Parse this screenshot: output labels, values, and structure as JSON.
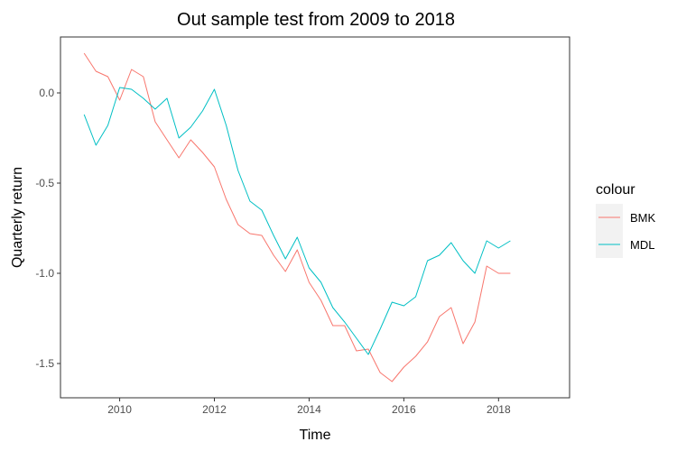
{
  "chart_data": {
    "type": "line",
    "title": "Out sample test from 2009 to 2018",
    "xlabel": "Time",
    "ylabel": "Quarterly return",
    "xlim": [
      2008.75,
      2019.5
    ],
    "ylim": [
      -1.69,
      0.31
    ],
    "xticks": [
      2010,
      2012,
      2014,
      2016,
      2018
    ],
    "yticks": [
      0.0,
      -0.5,
      -1.0,
      -1.5
    ],
    "xtick_labels": [
      "2010",
      "2012",
      "2014",
      "2016",
      "2018"
    ],
    "ytick_labels": [
      "0.0",
      "-0.5",
      "-1.0",
      "-1.5"
    ],
    "grid": false,
    "legend": {
      "title": "colour",
      "position": "right"
    },
    "x": [
      2009.25,
      2009.5,
      2009.75,
      2010.0,
      2010.25,
      2010.5,
      2010.75,
      2011.0,
      2011.25,
      2011.5,
      2011.75,
      2012.0,
      2012.25,
      2012.5,
      2012.75,
      2013.0,
      2013.25,
      2013.5,
      2013.75,
      2014.0,
      2014.25,
      2014.5,
      2014.75,
      2015.0,
      2015.25,
      2015.5,
      2015.75,
      2016.0,
      2016.25,
      2016.5,
      2016.75,
      2017.0,
      2017.25,
      2017.5,
      2017.75,
      2018.0,
      2018.25
    ],
    "series": [
      {
        "name": "BMK",
        "color": "#F8766D",
        "values": [
          0.22,
          0.12,
          0.09,
          -0.04,
          0.13,
          0.09,
          -0.16,
          -0.26,
          -0.36,
          -0.26,
          -0.33,
          -0.41,
          -0.59,
          -0.73,
          -0.78,
          -0.79,
          -0.9,
          -0.99,
          -0.87,
          -1.05,
          -1.15,
          -1.29,
          -1.29,
          -1.43,
          -1.42,
          -1.55,
          -1.6,
          -1.52,
          -1.46,
          -1.38,
          -1.24,
          -1.19,
          -1.39,
          -1.27,
          -0.96,
          -1.0,
          -1.0
        ]
      },
      {
        "name": "MDL",
        "color": "#00BFC4",
        "values": [
          -0.12,
          -0.29,
          -0.18,
          0.03,
          0.02,
          -0.03,
          -0.09,
          -0.03,
          -0.25,
          -0.19,
          -0.1,
          0.02,
          -0.18,
          -0.43,
          -0.6,
          -0.65,
          -0.79,
          -0.92,
          -0.8,
          -0.97,
          -1.05,
          -1.19,
          -1.27,
          -1.36,
          -1.45,
          -1.31,
          -1.16,
          -1.18,
          -1.13,
          -0.93,
          -0.9,
          -0.83,
          -0.93,
          -1.0,
          -0.82,
          -0.86,
          -0.82
        ]
      }
    ]
  }
}
